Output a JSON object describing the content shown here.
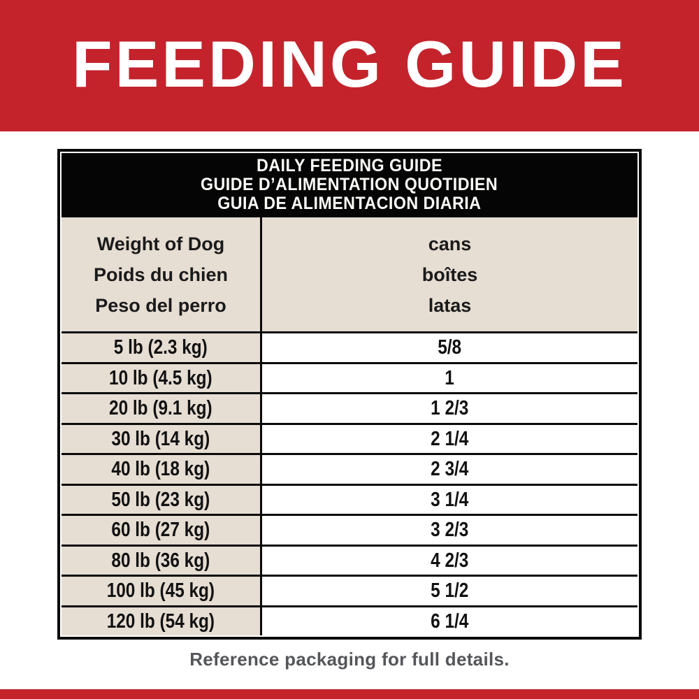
{
  "banner": {
    "title": "FEEDING GUIDE",
    "bg_color": "#C4232C",
    "text_color": "#FFFFFF"
  },
  "table": {
    "title_lines": [
      "DAILY FEEDING GUIDE",
      "GUIDE D’ALIMENTATION QUOTIDIEN",
      "GUIA DE ALIMENTACION DIARIA"
    ],
    "header": {
      "weight": [
        "Weight of Dog",
        "Poids du chien",
        "Peso del perro"
      ],
      "amount": [
        "cans",
        "boîtes",
        "latas"
      ]
    },
    "rows": [
      {
        "weight": "5 lb (2.3 kg)",
        "cans": "5/8"
      },
      {
        "weight": "10 lb (4.5 kg)",
        "cans": "1"
      },
      {
        "weight": "20 lb (9.1 kg)",
        "cans": "1 2/3"
      },
      {
        "weight": "30 lb (14 kg)",
        "cans": "2 1/4"
      },
      {
        "weight": "40 lb (18 kg)",
        "cans": "2 3/4"
      },
      {
        "weight": "50 lb (23 kg)",
        "cans": "3 1/4"
      },
      {
        "weight": "60 lb (27 kg)",
        "cans": "3 2/3"
      },
      {
        "weight": "80 lb (36 kg)",
        "cans": "4 2/3"
      },
      {
        "weight": "100 lb (45 kg)",
        "cans": "5 1/2"
      },
      {
        "weight": "120 lb (54 kg)",
        "cans": "6 1/4"
      }
    ],
    "colors": {
      "title_band_bg": "#050505",
      "title_band_text": "#FDFCF9",
      "cell_beige": "#E6DDD3",
      "cell_white": "#FFFFFF",
      "border": "#0A0A0A"
    }
  },
  "footer": {
    "note": "Reference packaging for full details.",
    "note_color": "#55565A",
    "band_color": "#C4232C"
  }
}
